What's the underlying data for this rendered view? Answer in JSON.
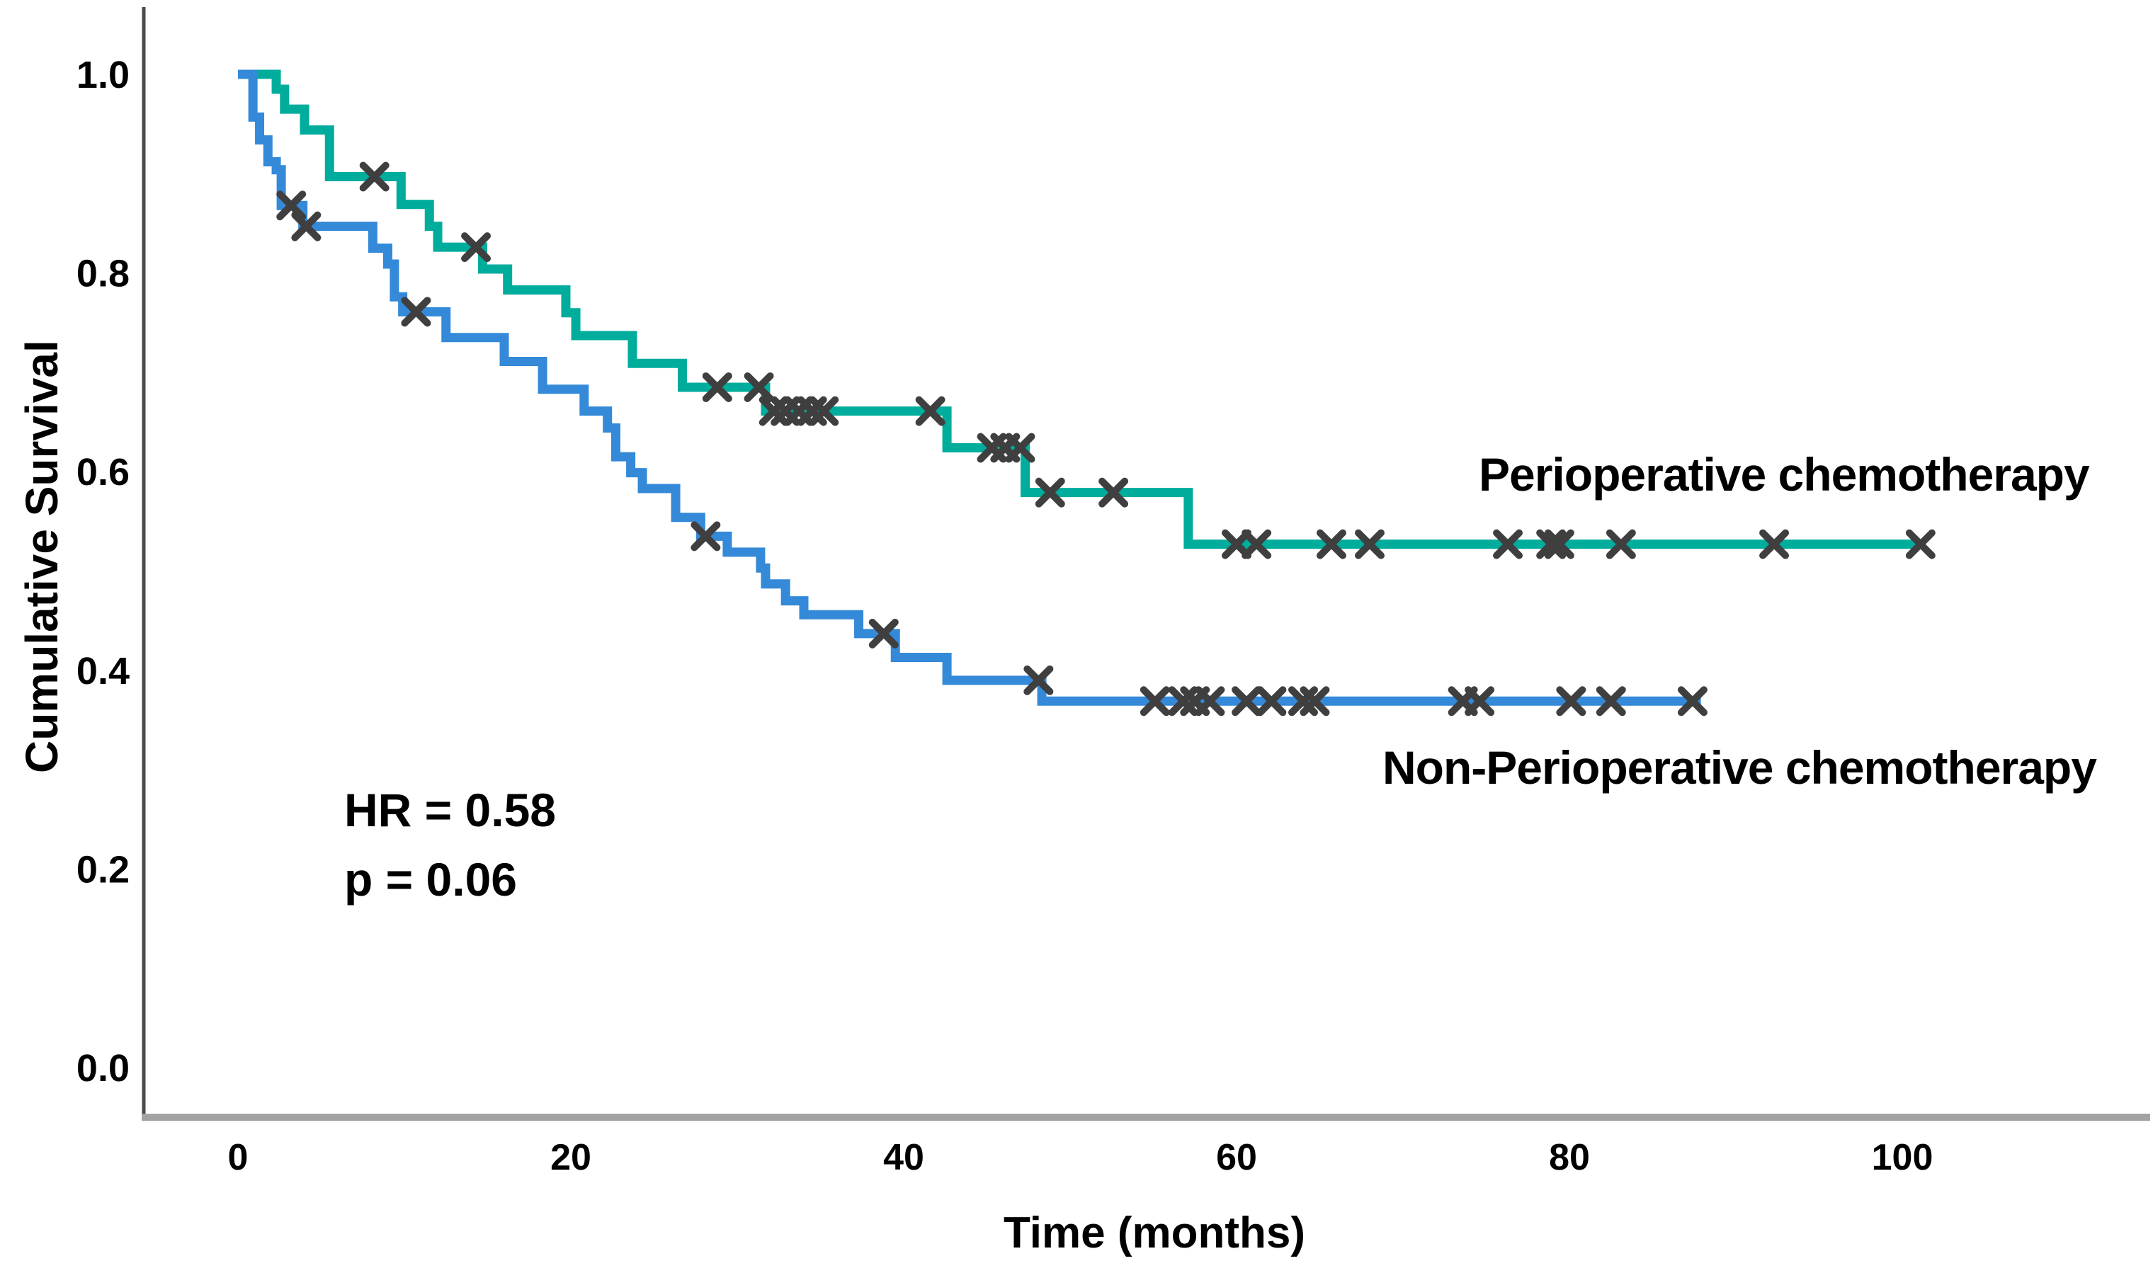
{
  "figure": {
    "background": "#ffffff",
    "axis_color_y": "#4a4a4a",
    "axis_color_x": "#a3a3a3",
    "text_color": "#000000"
  },
  "annotations": {
    "hr": "HR = 0.58",
    "p": "p = 0.06"
  },
  "chart_data": {
    "type": "line",
    "subtype": "kaplan-meier-step-curves",
    "title": "",
    "xlabel": "Time (months)",
    "ylabel": "Cumulative Survival",
    "xlim": [
      -6,
      115
    ],
    "ylim": [
      0.0,
      1.0
    ],
    "grid": false,
    "legend_position": "inline-right-of-curves",
    "x_ticks": [
      0,
      20,
      40,
      60,
      80,
      100
    ],
    "y_ticks": [
      {
        "v": 1.0,
        "label": "1.0"
      },
      {
        "v": 0.8,
        "label": "0.8"
      },
      {
        "v": 0.6,
        "label": "0.6"
      },
      {
        "v": 0.4,
        "label": "0.4"
      },
      {
        "v": 0.2,
        "label": "0.2"
      },
      {
        "v": 0.0,
        "label": "0.0"
      }
    ],
    "censor_marker": "x",
    "censor_color": "#3f3f3f",
    "series": [
      {
        "name": "Perioperative chemotherapy",
        "color": "#00ac9c",
        "end_month": 101.2,
        "steps": [
          [
            0,
            1.0
          ],
          [
            2.3,
            0.985
          ],
          [
            2.8,
            0.965
          ],
          [
            4.0,
            0.944
          ],
          [
            5.5,
            0.897
          ],
          [
            9.8,
            0.869
          ],
          [
            11.5,
            0.847
          ],
          [
            12.0,
            0.826
          ],
          [
            14.7,
            0.804
          ],
          [
            16.2,
            0.783
          ],
          [
            19.7,
            0.76
          ],
          [
            20.3,
            0.737
          ],
          [
            23.7,
            0.709
          ],
          [
            26.7,
            0.685
          ],
          [
            31.7,
            0.661
          ],
          [
            42.6,
            0.624
          ],
          [
            47.3,
            0.579
          ],
          [
            57.1,
            0.527
          ]
        ],
        "censored": [
          [
            8.2,
            0.897
          ],
          [
            14.3,
            0.826
          ],
          [
            28.8,
            0.685
          ],
          [
            31.3,
            0.685
          ],
          [
            32.2,
            0.661
          ],
          [
            32.9,
            0.661
          ],
          [
            33.7,
            0.661
          ],
          [
            34.5,
            0.661
          ],
          [
            35.2,
            0.661
          ],
          [
            41.6,
            0.661
          ],
          [
            45.3,
            0.624
          ],
          [
            46.1,
            0.624
          ],
          [
            47.0,
            0.624
          ],
          [
            48.8,
            0.579
          ],
          [
            52.6,
            0.579
          ],
          [
            60.0,
            0.527
          ],
          [
            61.2,
            0.527
          ],
          [
            65.7,
            0.527
          ],
          [
            68.0,
            0.527
          ],
          [
            76.3,
            0.527
          ],
          [
            78.9,
            0.527
          ],
          [
            79.4,
            0.527
          ],
          [
            83.1,
            0.527
          ],
          [
            92.3,
            0.527
          ],
          [
            101.1,
            0.527
          ]
        ]
      },
      {
        "name": "Non-Perioperative chemotherapy",
        "color": "#3489d8",
        "end_month": 87.9,
        "steps": [
          [
            0,
            1.0
          ],
          [
            0.9,
            0.957
          ],
          [
            1.3,
            0.934
          ],
          [
            1.8,
            0.912
          ],
          [
            2.3,
            0.904
          ],
          [
            2.6,
            0.868
          ],
          [
            3.9,
            0.847
          ],
          [
            8.1,
            0.825
          ],
          [
            9.0,
            0.809
          ],
          [
            9.4,
            0.776
          ],
          [
            9.9,
            0.761
          ],
          [
            12.5,
            0.735
          ],
          [
            16.0,
            0.711
          ],
          [
            18.3,
            0.683
          ],
          [
            20.8,
            0.661
          ],
          [
            22.2,
            0.644
          ],
          [
            22.7,
            0.615
          ],
          [
            23.6,
            0.599
          ],
          [
            24.3,
            0.583
          ],
          [
            26.3,
            0.554
          ],
          [
            27.8,
            0.535
          ],
          [
            29.4,
            0.519
          ],
          [
            31.4,
            0.503
          ],
          [
            31.7,
            0.487
          ],
          [
            32.9,
            0.47
          ],
          [
            34.0,
            0.456
          ],
          [
            37.3,
            0.437
          ],
          [
            39.5,
            0.413
          ],
          [
            42.6,
            0.39
          ],
          [
            48.3,
            0.369
          ]
        ],
        "censored": [
          [
            3.2,
            0.868
          ],
          [
            4.1,
            0.847
          ],
          [
            10.7,
            0.761
          ],
          [
            28.1,
            0.535
          ],
          [
            38.8,
            0.437
          ],
          [
            48.1,
            0.39
          ],
          [
            55.1,
            0.369
          ],
          [
            56.8,
            0.369
          ],
          [
            57.5,
            0.369
          ],
          [
            58.4,
            0.369
          ],
          [
            60.6,
            0.369
          ],
          [
            62.1,
            0.369
          ],
          [
            64.0,
            0.369
          ],
          [
            64.7,
            0.369
          ],
          [
            73.6,
            0.369
          ],
          [
            74.6,
            0.369
          ],
          [
            80.1,
            0.369
          ],
          [
            82.5,
            0.369
          ],
          [
            87.4,
            0.369
          ]
        ]
      }
    ]
  }
}
